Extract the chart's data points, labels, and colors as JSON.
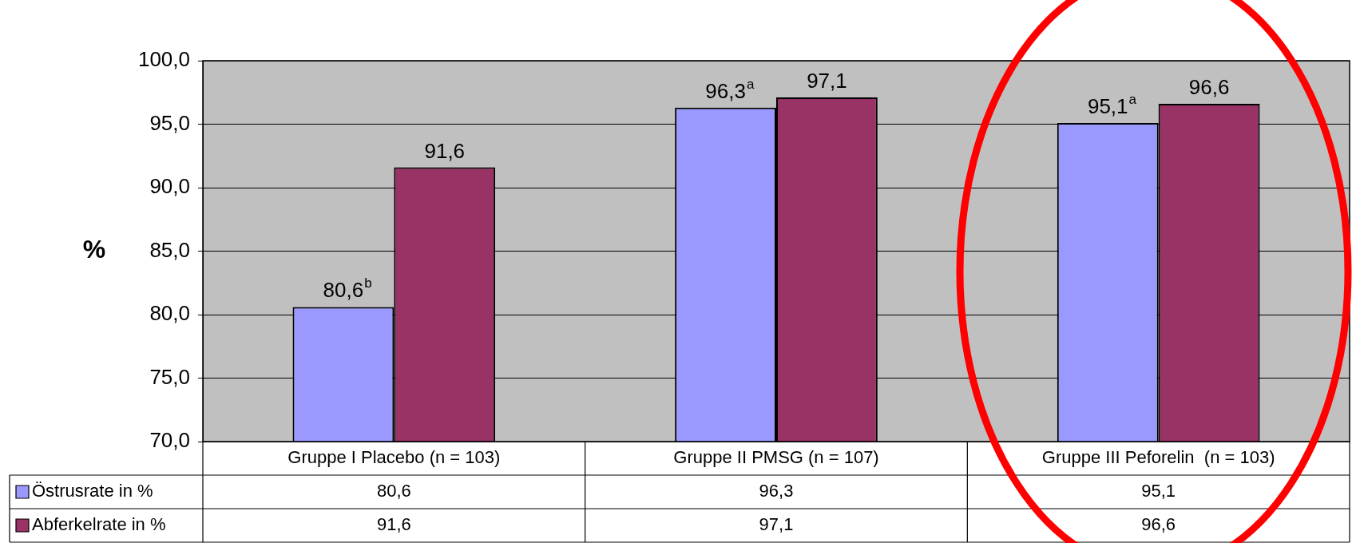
{
  "chart_data": {
    "type": "bar",
    "ylabel": "%",
    "categories": [
      "Gruppe I Placebo (n = 103)",
      "Gruppe II PMSG (n = 107)",
      "Gruppe III Peforelin  (n = 103)"
    ],
    "series": [
      {
        "name": "Östrusrate in %",
        "color": "#9999ff",
        "values": [
          80.6,
          96.3,
          95.1
        ],
        "value_labels": [
          "80,6",
          "96,3",
          "95,1"
        ]
      },
      {
        "name": "Abferkelrate in %",
        "color": "#993366",
        "values": [
          91.6,
          97.1,
          96.6
        ],
        "value_labels": [
          "91,6",
          "97,1",
          "96,6"
        ]
      }
    ],
    "ylim": [
      70,
      100
    ],
    "yticks": [
      {
        "value": 70,
        "label": "70,0"
      },
      {
        "value": 75,
        "label": "75,0"
      },
      {
        "value": 80,
        "label": "80,0"
      },
      {
        "value": 85,
        "label": "85,0"
      },
      {
        "value": 90,
        "label": "90,0"
      },
      {
        "value": 95,
        "label": "95,0"
      },
      {
        "value": 100,
        "label": "100,0"
      }
    ],
    "annotations": [
      {
        "text": "b",
        "x": "Gruppe I Placebo (n = 103)",
        "y": 80.6
      },
      {
        "text": "a",
        "x": "Gruppe II PMSG (n = 107)",
        "y": 96.3
      },
      {
        "text": "a",
        "x": "Gruppe III Peforelin  (n = 103)",
        "y": 95.1
      }
    ],
    "grid": "y",
    "legend": "bottom",
    "data_labels": true
  }
}
